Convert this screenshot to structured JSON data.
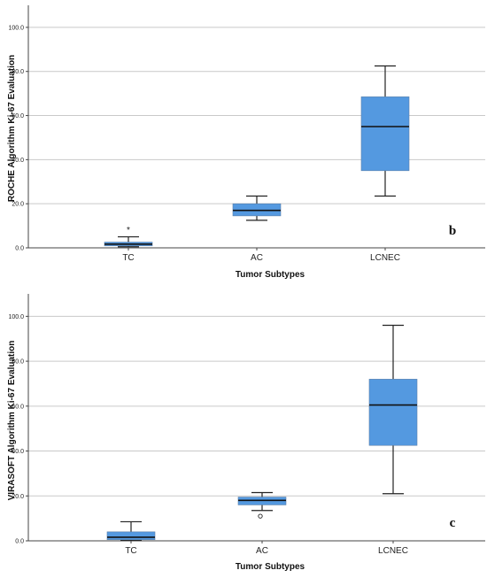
{
  "chart_data": [
    {
      "type": "box",
      "panel_label": "b",
      "xlabel": "Tumor Subtypes",
      "ylabel": "ROCHE Algorithm Ki-67 Evaluation",
      "ylim": [
        0,
        110
      ],
      "yticks": [
        "0.0",
        "20.0",
        "40.0",
        "60.0",
        "80.0",
        "100.0"
      ],
      "categories": [
        "TC",
        "AC",
        "LCNEC"
      ],
      "box_color": "#5499e0",
      "grid": true,
      "boxes": [
        {
          "category": "TC",
          "whisker_low": 0.5,
          "q1": 0.9,
          "median": 1.7,
          "q3": 2.6,
          "whisker_high": 5.0,
          "outliers": [],
          "extremes": [
            8.5
          ]
        },
        {
          "category": "AC",
          "whisker_low": 12.5,
          "q1": 14.5,
          "median": 17.0,
          "q3": 20.0,
          "whisker_high": 23.5,
          "outliers": [],
          "extremes": []
        },
        {
          "category": "LCNEC",
          "whisker_low": 23.5,
          "q1": 35.0,
          "median": 55.0,
          "q3": 68.5,
          "whisker_high": 82.5,
          "outliers": [],
          "extremes": []
        }
      ]
    },
    {
      "type": "box",
      "panel_label": "c",
      "xlabel": "Tumor Subtypes",
      "ylabel": "VIRASOFT Algorithm Ki-67 Evaluation",
      "ylim": [
        0,
        110
      ],
      "yticks": [
        "0.0",
        "20.0",
        "40.0",
        "60.0",
        "80.0",
        "100.0"
      ],
      "categories": [
        "TC",
        "AC",
        "LCNEC"
      ],
      "box_color": "#5499e0",
      "grid": true,
      "boxes": [
        {
          "category": "TC",
          "whisker_low": 0.2,
          "q1": 0.5,
          "median": 1.6,
          "q3": 4.0,
          "whisker_high": 8.5,
          "outliers": [],
          "extremes": []
        },
        {
          "category": "AC",
          "whisker_low": 13.5,
          "q1": 16.0,
          "median": 18.0,
          "q3": 19.5,
          "whisker_high": 21.5,
          "outliers": [
            11.0
          ],
          "extremes": []
        },
        {
          "category": "LCNEC",
          "whisker_low": 21.0,
          "q1": 42.5,
          "median": 60.5,
          "q3": 72.0,
          "whisker_high": 96.0,
          "outliers": [],
          "extremes": []
        }
      ]
    }
  ]
}
